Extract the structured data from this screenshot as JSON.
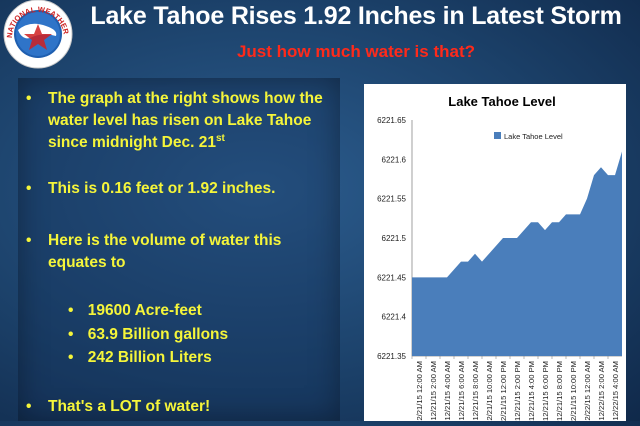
{
  "header": {
    "title": "Lake Tahoe Rises 1.92 Inches in Latest Storm",
    "subtitle": "Just how much water is that?",
    "logo_text": "NATIONAL WEATHER SERVICE"
  },
  "bullets": {
    "b1_text": "The graph at the right shows how the water level has risen on Lake Tahoe since midnight Dec. 21",
    "b1_sup": "st",
    "b2_text": "This is 0.16 feet or 1.92 inches.",
    "b3_text": "Here is the volume of water this equates to",
    "sub": [
      "19600 Acre-feet",
      "63.9 Billion gallons",
      "242 Billion Liters"
    ],
    "b4_text": "That's a LOT of water!",
    "bullet_char": "•"
  },
  "colors": {
    "title": "#ffffff",
    "subtitle": "#ff2a1a",
    "bullet_text": "#f5f53a",
    "area_fill": "#4a7ebb"
  },
  "chart_data": {
    "type": "area",
    "title": "Lake Tahoe Level",
    "legend": [
      "Lake Tahoe Level"
    ],
    "legend_position": "top-right",
    "ylim": [
      6221.35,
      6221.65
    ],
    "yticks": [
      "6221.65",
      "6221.6",
      "6221.55",
      "6221.5",
      "6221.45",
      "6221.4",
      "6221.35"
    ],
    "ytick_values": [
      6221.65,
      6221.6,
      6221.55,
      6221.5,
      6221.45,
      6221.4,
      6221.35
    ],
    "xtick_labels": [
      "12/21/15 12:00 AM",
      "12/21/15 2:00 AM",
      "12/21/15 4:00 AM",
      "12/21/15 6:00 AM",
      "12/21/15 8:00 AM",
      "12/21/15 10:00 AM",
      "12/21/15 12:00 PM",
      "12/21/15 2:00 PM",
      "12/21/15 4:00 PM",
      "12/21/15 6:00 PM",
      "12/21/15 8:00 PM",
      "12/21/15 10:00 PM",
      "12/22/15 12:00 AM",
      "12/22/15 2:00 AM",
      "12/22/15 4:00 AM"
    ],
    "series": [
      {
        "name": "Lake Tahoe Level",
        "values": [
          6221.45,
          6221.45,
          6221.45,
          6221.45,
          6221.45,
          6221.45,
          6221.46,
          6221.47,
          6221.47,
          6221.48,
          6221.47,
          6221.48,
          6221.49,
          6221.5,
          6221.5,
          6221.5,
          6221.51,
          6221.52,
          6221.52,
          6221.51,
          6221.52,
          6221.52,
          6221.53,
          6221.53,
          6221.53,
          6221.55,
          6221.58,
          6221.59,
          6221.58,
          6221.58,
          6221.61
        ]
      }
    ],
    "grid": false
  }
}
